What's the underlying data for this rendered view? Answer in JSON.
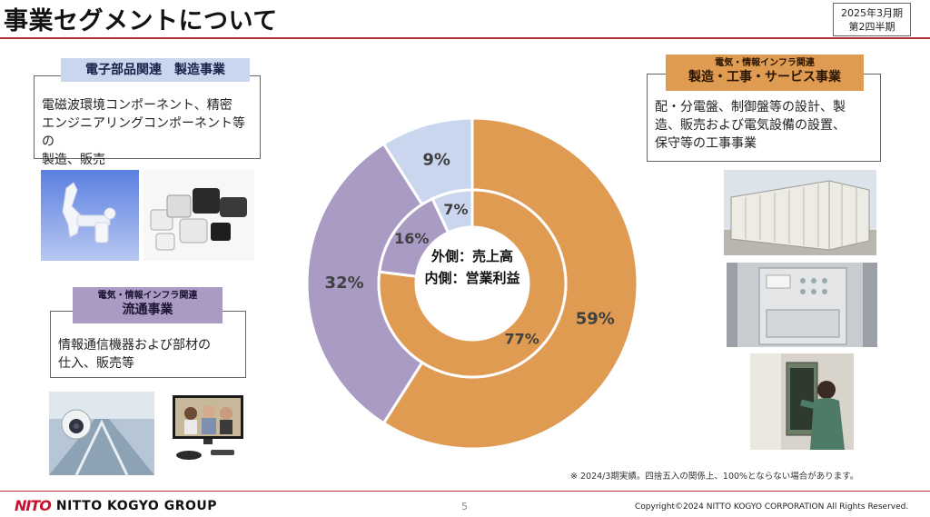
{
  "header": {
    "title": "事業セグメントについて",
    "period_line1": "2025年3月期",
    "period_line2": "第2四半期"
  },
  "segments": {
    "electronic": {
      "label": "電子部品関連　製造事業",
      "description": [
        "電磁波環境コンポーネント、精密",
        "エンジニアリングコンポーネント等の",
        "製造、販売"
      ]
    },
    "distribution": {
      "label_sub": "電気・情報インフラ関連",
      "label_main": "流通事業",
      "description": [
        "情報通信機器および部材の",
        "仕入、販売等"
      ]
    },
    "manufacturing": {
      "label_sub": "電気・情報インフラ関連",
      "label_main": "製造・工事・サービス事業",
      "description": [
        "配・分電盤、制御盤等の設計、製",
        "造、販売および電気設備の設置、",
        "保守等の工事事業"
      ]
    }
  },
  "chart_data": {
    "type": "pie",
    "center_label_line1": "外側：売上高",
    "center_label_line2": "内側：営業利益",
    "outer": {
      "slices": [
        {
          "segment": "電気・情報インフラ関連 製造・工事・サービス事業",
          "value": 59,
          "label": "59%",
          "color": "#df9b52"
        },
        {
          "segment": "電気・情報インフラ関連 流通事業",
          "value": 32,
          "label": "32%",
          "color": "#aa9bc4"
        },
        {
          "segment": "電子部品関連 製造事業",
          "value": 9,
          "label": "9%",
          "color": "#c9d6ee"
        }
      ]
    },
    "inner": {
      "slices": [
        {
          "segment": "電気・情報インフラ関連 製造・工事・サービス事業",
          "value": 77,
          "label": "77%",
          "color": "#df9b52"
        },
        {
          "segment": "電気・情報インフラ関連 流通事業",
          "value": 16,
          "label": "16%",
          "color": "#aa9bc4"
        },
        {
          "segment": "電子部品関連 製造事業",
          "value": 7,
          "label": "7%",
          "color": "#c9d6ee"
        }
      ]
    }
  },
  "footnote": "※ 2024/3期実績。四捨五入の関係上、100%とならない場合があります。",
  "footer": {
    "logo_mark": "NITO",
    "logo_text": "NITTO KOGYO GROUP",
    "page_number": "5",
    "copyright": "Copyright©2024 NITTO KOGYO CORPORATION All Rights Reserved."
  }
}
